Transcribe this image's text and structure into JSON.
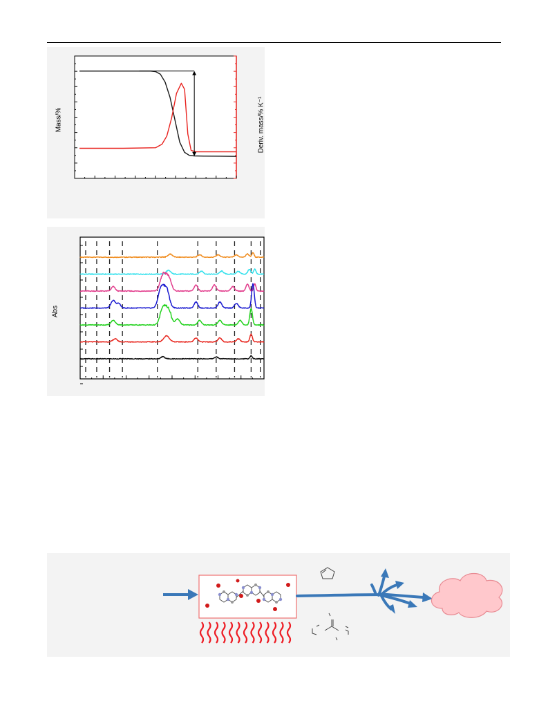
{
  "colors": {
    "mass_curve": "#1a1a1a",
    "derivative_curve": "#e8231f",
    "panel_background": "#f3f3f3",
    "right_axis": "#e8231f",
    "arrow_blue": "#3a78b8",
    "cloud_fill": "#ffc8cc",
    "cloud_stroke": "#e88a92",
    "box_stroke": "#ee7070",
    "heat_waves": "#ee1c24"
  },
  "chart_data": [
    {
      "type": "line",
      "title": "",
      "ylabel": "Mass/%",
      "y2label": "Deriv. mass/% K⁻¹",
      "xlabel": "",
      "x_range": [
        0,
        10
      ],
      "y_range": [
        0,
        100
      ],
      "y2_range": [
        0,
        100
      ],
      "grid": false,
      "series": [
        {
          "name": "",
          "axis": "left",
          "color": "#1a1a1a",
          "x": [
            0.3,
            4.7,
            5.0,
            5.3,
            5.6,
            5.9,
            6.2,
            6.5,
            6.8,
            7.1,
            7.4,
            8.0,
            9.0,
            10.0
          ],
          "y": [
            92,
            92,
            91.5,
            89,
            81,
            66,
            44,
            22,
            12,
            9,
            8.5,
            8.3,
            8.2,
            8.0
          ]
        },
        {
          "name": "",
          "axis": "right",
          "color": "#e8231f",
          "x": [
            0.3,
            3.0,
            5.0,
            5.4,
            5.7,
            6.0,
            6.3,
            6.6,
            6.8,
            7.0,
            7.2,
            7.5,
            8.0,
            9.0,
            10.0
          ],
          "y": [
            16,
            16,
            16.5,
            20,
            28,
            46,
            70,
            80,
            74,
            30,
            14,
            12.5,
            12.5,
            12.5,
            12.5
          ]
        }
      ],
      "annotation": {
        "type": "double-arrow",
        "x": 7.4,
        "y_from": 92,
        "y_to": 8.3
      }
    },
    {
      "type": "line",
      "title": "",
      "ylabel": "Abs",
      "xlabel": "",
      "grid": false,
      "x_range": [
        0,
        100
      ],
      "dashed_markers_x": [
        3,
        9,
        16,
        23,
        42,
        64,
        74,
        84,
        93,
        98
      ],
      "series": [
        {
          "name": "",
          "color": "#f08c1e",
          "offset": 6,
          "peaks": [
            [
              49,
              2,
              1.2
            ],
            [
              65,
              1.6,
              1
            ],
            [
              75,
              1.6,
              1
            ],
            [
              85,
              1.4,
              1
            ],
            [
              91,
              2.2,
              0.8
            ],
            [
              94,
              3,
              0.6
            ]
          ]
        },
        {
          "name": "",
          "color": "#2ee0ec",
          "offset": 5,
          "peaks": [
            [
              48,
              2.5,
              1.2
            ],
            [
              66,
              2,
              1
            ],
            [
              77,
              2,
              1
            ],
            [
              86,
              1.8,
              1
            ],
            [
              92,
              3,
              0.8
            ],
            [
              95,
              3.4,
              0.6
            ]
          ]
        },
        {
          "name": "",
          "color": "#e23c8c",
          "offset": 4,
          "peaks": [
            [
              18,
              3,
              1
            ],
            [
              45,
              10,
              1.5
            ],
            [
              48,
              9,
              1.5
            ],
            [
              63,
              4,
              1
            ],
            [
              73,
              4,
              1
            ],
            [
              83,
              3,
              1
            ],
            [
              91,
              4.5,
              0.8
            ],
            [
              95,
              5,
              0.6
            ]
          ]
        },
        {
          "name": "",
          "color": "#1a1ad0",
          "offset": 3,
          "peaks": [
            [
              18,
              5,
              1.2
            ],
            [
              21,
              3,
              1
            ],
            [
              44,
              13,
              1.5
            ],
            [
              47,
              12,
              1.5
            ],
            [
              63,
              4,
              1
            ],
            [
              76,
              4,
              1
            ],
            [
              85,
              3,
              1
            ],
            [
              94,
              16,
              0.7
            ]
          ]
        },
        {
          "name": "",
          "color": "#23d21e",
          "offset": 2,
          "peaks": [
            [
              18,
              3,
              1.2
            ],
            [
              45,
              11,
              1.5
            ],
            [
              48,
              10,
              1.5
            ],
            [
              53,
              4,
              1.2
            ],
            [
              65,
              3,
              1
            ],
            [
              76,
              3,
              1
            ],
            [
              87,
              3,
              1
            ],
            [
              93,
              11,
              0.7
            ]
          ]
        },
        {
          "name": "",
          "color": "#e82820",
          "offset": 1,
          "peaks": [
            [
              19,
              2,
              1.2
            ],
            [
              47,
              4,
              1.5
            ],
            [
              63,
              2.5,
              1
            ],
            [
              76,
              2.5,
              1
            ],
            [
              86,
              2,
              1
            ],
            [
              93,
              5,
              0.7
            ]
          ]
        },
        {
          "name": "",
          "color": "#111111",
          "offset": 0,
          "peaks": [
            [
              45,
              1.5,
              1
            ],
            [
              74,
              1.2,
              1
            ],
            [
              93,
              2,
              0.6
            ]
          ]
        }
      ]
    }
  ],
  "scheme": {
    "cloud": {
      "label": ""
    },
    "products": [
      "",
      ""
    ]
  }
}
